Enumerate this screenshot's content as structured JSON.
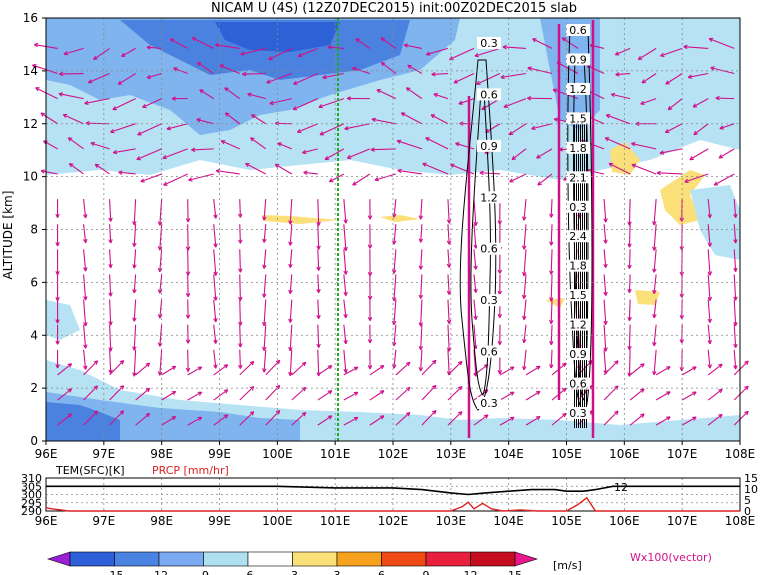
{
  "chart_data": [
    {
      "type": "heatmap",
      "title": "NICAM U (4S) (12Z07DEC2015) init:00Z02DEC2015 slab",
      "xlabel": "",
      "ylabel": "ALTITUDE [km]",
      "x_ticks": [
        "96E",
        "97E",
        "98E",
        "99E",
        "100E",
        "101E",
        "102E",
        "103E",
        "104E",
        "105E",
        "106E",
        "107E",
        "108E"
      ],
      "y_ticks": [
        "0",
        "2",
        "4",
        "6",
        "8",
        "10",
        "12",
        "14",
        "16"
      ],
      "xlim": [
        96,
        108
      ],
      "ylim": [
        0,
        16
      ],
      "grid": true,
      "colorbar": {
        "ticks": [
          "-15",
          "-12",
          "-9",
          "-6",
          "-3",
          "3",
          "6",
          "9",
          "12",
          "15"
        ],
        "unit": "[m/s]",
        "colors": [
          "#9a1fd6",
          "#2c5fd8",
          "#4a84e2",
          "#7aaaf0",
          "#aee0f0",
          "#ffffff",
          "#fbe07a",
          "#f7a21f",
          "#f04a14",
          "#e8203e",
          "#c40d1e",
          "#e8188c"
        ]
      },
      "vector_label": "Wx100(vector)",
      "contours": [
        {
          "name": "column_103.5E",
          "labels": [
            "0.3",
            "0.6",
            "0.9",
            "1.2",
            "0.6",
            "0.3",
            "0.6",
            "0.3"
          ]
        },
        {
          "name": "column_105.5E",
          "labels": [
            "0.6",
            "0.9",
            "1.2",
            "1.5",
            "1.8",
            "2.1",
            "0.3",
            "2.4",
            "1.8",
            "1.5",
            "1.2",
            "0.9",
            "0.6",
            "0.3"
          ]
        }
      ],
      "reference_line_x": 101.0
    },
    {
      "type": "line",
      "xlabel": "",
      "x_ticks": [
        "96E",
        "97E",
        "98E",
        "99E",
        "100E",
        "101E",
        "102E",
        "103E",
        "104E",
        "105E",
        "106E",
        "107E",
        "108E"
      ],
      "xlim": [
        96,
        108
      ],
      "left_axis": {
        "label": "TEM(SFC)[K]",
        "ticks": [
          "310",
          "305",
          "300",
          "295",
          "290"
        ],
        "range": [
          290,
          310
        ]
      },
      "right_axis": {
        "label": "PRCP [mm/hr]",
        "ticks": [
          "15",
          "10",
          "5",
          "0"
        ],
        "range": [
          0,
          15
        ]
      },
      "series": [
        {
          "name": "TEM(SFC)[K]",
          "color": "#000000",
          "x": [
            96,
            96.5,
            97,
            98,
            99,
            100,
            101,
            102,
            102.5,
            103,
            103.3,
            103.6,
            104,
            104.4,
            104.8,
            105,
            105.3,
            105.5,
            105.8,
            106,
            107,
            108
          ],
          "y": [
            305,
            305,
            305,
            305,
            305,
            305,
            304,
            304,
            303,
            301,
            300,
            301,
            302,
            303,
            303,
            302,
            302,
            303,
            305,
            305,
            305,
            305
          ]
        },
        {
          "name": "PRCP [mm/hr]",
          "color": "#dd2222",
          "x": [
            96,
            96.1,
            96.4,
            97,
            102,
            103,
            103.2,
            103.3,
            103.4,
            103.55,
            103.7,
            103.9,
            104.2,
            104.5,
            105,
            105.2,
            105.35,
            105.5,
            105.7,
            106,
            108
          ],
          "y": [
            1.5,
            1.0,
            0,
            0,
            0,
            0,
            2,
            4,
            1,
            3.5,
            1,
            0,
            0.5,
            0,
            0,
            3,
            6,
            0,
            0,
            0,
            0
          ],
          "marker_text": "12"
        }
      ]
    }
  ]
}
